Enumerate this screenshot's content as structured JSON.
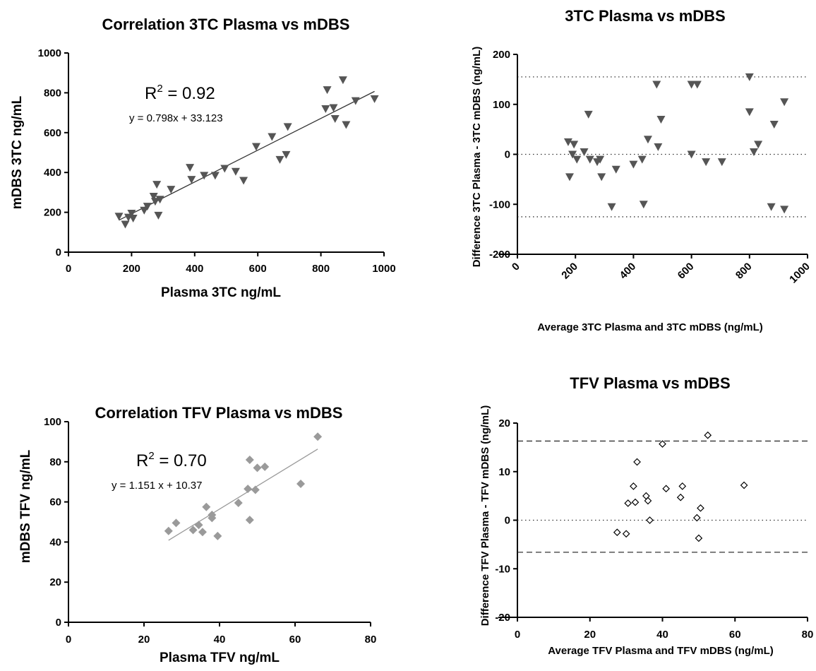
{
  "chart_data": [
    {
      "id": "corr3tc",
      "type": "scatter",
      "title": "Correlation 3TC Plasma vs mDBS",
      "xlabel": "Plasma 3TC ng/mL",
      "ylabel": "mDBS 3TC ng/mL",
      "xlim": [
        0,
        1000
      ],
      "ylim": [
        0,
        1000
      ],
      "xticks": [
        0,
        200,
        400,
        600,
        800,
        1000
      ],
      "yticks": [
        0,
        200,
        400,
        600,
        800,
        1000
      ],
      "marker": "triangle-down",
      "marker_color": "#555555",
      "annotations": {
        "r2_prefix": "R",
        "r2_sup": "2",
        "r2_value": " = 0.92",
        "equation": "y = 0.798x + 33.123"
      },
      "trendline": {
        "slope": 0.798,
        "intercept": 33.123,
        "x_range": [
          160,
          970
        ]
      },
      "points": [
        [
          160,
          180
        ],
        [
          180,
          140
        ],
        [
          190,
          175
        ],
        [
          200,
          195
        ],
        [
          205,
          170
        ],
        [
          240,
          210
        ],
        [
          250,
          230
        ],
        [
          270,
          280
        ],
        [
          275,
          255
        ],
        [
          280,
          340
        ],
        [
          285,
          185
        ],
        [
          290,
          265
        ],
        [
          325,
          315
        ],
        [
          385,
          425
        ],
        [
          390,
          365
        ],
        [
          430,
          385
        ],
        [
          465,
          385
        ],
        [
          495,
          420
        ],
        [
          530,
          405
        ],
        [
          555,
          360
        ],
        [
          595,
          530
        ],
        [
          645,
          580
        ],
        [
          670,
          465
        ],
        [
          690,
          490
        ],
        [
          695,
          630
        ],
        [
          815,
          720
        ],
        [
          820,
          815
        ],
        [
          840,
          725
        ],
        [
          845,
          670
        ],
        [
          870,
          865
        ],
        [
          880,
          640
        ],
        [
          910,
          760
        ],
        [
          970,
          770
        ]
      ]
    },
    {
      "id": "ba3tc",
      "type": "scatter",
      "title": "3TC Plasma vs mDBS",
      "xlabel": "Average 3TC Plasma and 3TC mDBS (ng/mL)",
      "ylabel": "Difference 3TC Plasma - 3TC mDBS  (ng/mL)",
      "xlim": [
        0,
        1000
      ],
      "ylim": [
        -200,
        200
      ],
      "xticks": [
        0,
        200,
        400,
        600,
        800,
        1000
      ],
      "yticks": [
        -200,
        -100,
        0,
        100,
        200
      ],
      "marker": "triangle-down",
      "marker_color": "#555555",
      "reference_lines": [
        155,
        0,
        -125
      ],
      "reference_style": "dotted",
      "points": [
        [
          175,
          25
        ],
        [
          180,
          -45
        ],
        [
          190,
          0
        ],
        [
          195,
          20
        ],
        [
          205,
          -10
        ],
        [
          230,
          5
        ],
        [
          245,
          80
        ],
        [
          250,
          -10
        ],
        [
          275,
          -15
        ],
        [
          285,
          -10
        ],
        [
          290,
          -45
        ],
        [
          325,
          -105
        ],
        [
          340,
          -30
        ],
        [
          400,
          -20
        ],
        [
          430,
          -10
        ],
        [
          435,
          -100
        ],
        [
          450,
          30
        ],
        [
          480,
          140
        ],
        [
          485,
          15
        ],
        [
          495,
          70
        ],
        [
          600,
          140
        ],
        [
          600,
          0
        ],
        [
          620,
          140
        ],
        [
          650,
          -15
        ],
        [
          705,
          -15
        ],
        [
          800,
          155
        ],
        [
          800,
          85
        ],
        [
          815,
          5
        ],
        [
          830,
          20
        ],
        [
          875,
          -105
        ],
        [
          885,
          60
        ],
        [
          920,
          -110
        ],
        [
          920,
          105
        ]
      ]
    },
    {
      "id": "corrtfv",
      "type": "scatter",
      "title": "Correlation TFV Plasma vs mDBS",
      "xlabel": "Plasma TFV ng/mL",
      "ylabel": "mDBS TFV ng/mL",
      "xlim": [
        0,
        80
      ],
      "ylim": [
        0,
        100
      ],
      "xticks": [
        0,
        20,
        40,
        60,
        80
      ],
      "yticks": [
        0,
        20,
        40,
        60,
        80,
        100
      ],
      "marker": "diamond",
      "marker_color": "#9a9a9a",
      "annotations": {
        "r2_prefix": "R",
        "r2_sup": "2",
        "r2_value": " = 0.70",
        "equation": "y = 1.151 x + 10.37"
      },
      "trendline": {
        "slope": 1.151,
        "intercept": 10.37,
        "x_range": [
          26.5,
          66
        ]
      },
      "points": [
        [
          26.5,
          45.5
        ],
        [
          28.5,
          49.5
        ],
        [
          33,
          46
        ],
        [
          34.5,
          48.5
        ],
        [
          35.5,
          45
        ],
        [
          36.5,
          57.5
        ],
        [
          38,
          52
        ],
        [
          38,
          53.5
        ],
        [
          39.5,
          43
        ],
        [
          45,
          59.5
        ],
        [
          47.5,
          66.5
        ],
        [
          48,
          81
        ],
        [
          48,
          51
        ],
        [
          49.5,
          66
        ],
        [
          50,
          77
        ],
        [
          52,
          77.5
        ],
        [
          61.5,
          69
        ],
        [
          66,
          92.5
        ]
      ]
    },
    {
      "id": "batfv",
      "type": "scatter",
      "title": "TFV Plasma vs mDBS",
      "xlabel": "Average TFV Plasma and TFV mDBS (ng/mL)",
      "ylabel": "Difference TFV Plasma - TFV mDBS  (ng/mL)",
      "xlim": [
        0,
        80
      ],
      "ylim": [
        -20,
        20
      ],
      "xticks": [
        0,
        20,
        40,
        60,
        80
      ],
      "yticks": [
        -20,
        -10,
        0,
        10,
        20
      ],
      "marker": "diamond-open",
      "marker_color": "#000000",
      "reference_lines": [
        16.3,
        -6.6
      ],
      "reference_style": "dashed",
      "zero_line": 0,
      "points": [
        [
          27.5,
          -2.5
        ],
        [
          30,
          -2.8
        ],
        [
          30.5,
          3.5
        ],
        [
          32,
          7
        ],
        [
          32.5,
          3.7
        ],
        [
          33,
          12
        ],
        [
          35.5,
          5
        ],
        [
          36,
          4
        ],
        [
          36.5,
          0
        ],
        [
          40,
          15.7
        ],
        [
          41,
          6.5
        ],
        [
          45,
          4.7
        ],
        [
          45.5,
          7
        ],
        [
          49.5,
          0.5
        ],
        [
          50,
          -3.7
        ],
        [
          50.5,
          2.5
        ],
        [
          52.5,
          17.5
        ],
        [
          62.5,
          7.2
        ]
      ]
    }
  ]
}
